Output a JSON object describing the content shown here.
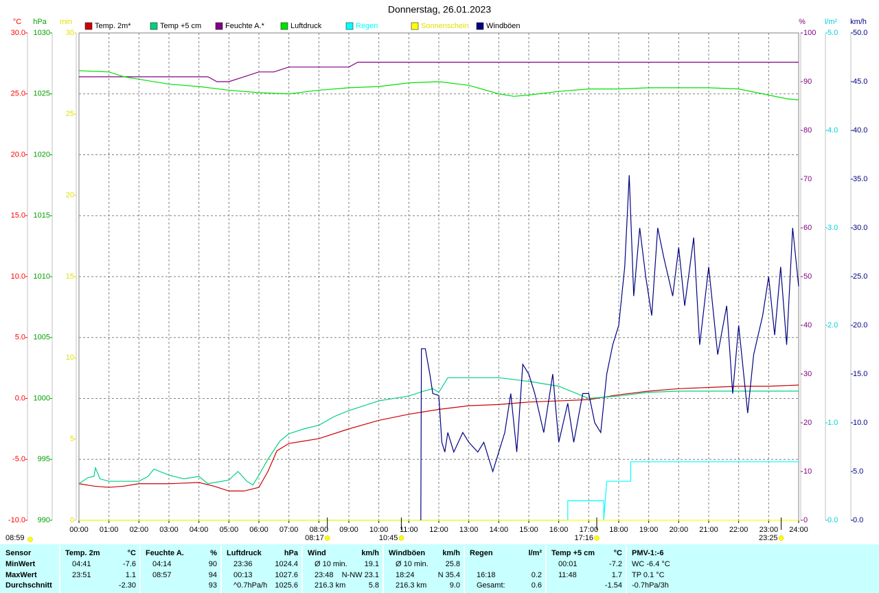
{
  "chart_data": {
    "type": "line",
    "title": "Donnerstag, 26.01.2023",
    "grid": true,
    "xlim": [
      0,
      24
    ],
    "xticks": [
      {
        "value": 0,
        "label": "00:00"
      },
      {
        "value": 1,
        "label": "01:00"
      },
      {
        "value": 2,
        "label": "02:00"
      },
      {
        "value": 3,
        "label": "03:00"
      },
      {
        "value": 4,
        "label": "04:00"
      },
      {
        "value": 5,
        "label": "05:00"
      },
      {
        "value": 6,
        "label": "06:00"
      },
      {
        "value": 7,
        "label": "07:00"
      },
      {
        "value": 8,
        "label": "08:00"
      },
      {
        "value": 9,
        "label": "09:00"
      },
      {
        "value": 10,
        "label": "10:00"
      },
      {
        "value": 11,
        "label": "11:00"
      },
      {
        "value": 12,
        "label": "12:00"
      },
      {
        "value": 13,
        "label": "13:00"
      },
      {
        "value": 14,
        "label": "14:00"
      },
      {
        "value": 15,
        "label": "15:00"
      },
      {
        "value": 16,
        "label": "16:00"
      },
      {
        "value": 17,
        "label": "17:00"
      },
      {
        "value": 18,
        "label": "18:00"
      },
      {
        "value": 19,
        "label": "19:00"
      },
      {
        "value": 20,
        "label": "20:00"
      },
      {
        "value": 21,
        "label": "21:00"
      },
      {
        "value": 22,
        "label": "22:00"
      },
      {
        "value": 23,
        "label": "23:00"
      },
      {
        "value": 24,
        "label": "24:00"
      }
    ],
    "axes": [
      {
        "label": "°C",
        "color": "#ff0000",
        "lim": [
          -10,
          30
        ],
        "ticks": [
          {
            "value": -10,
            "label": "-10.0"
          },
          {
            "value": -5,
            "label": "-5.0"
          },
          {
            "value": 0,
            "label": "0.0"
          },
          {
            "value": 5,
            "label": "5.0"
          },
          {
            "value": 10,
            "label": "10.0"
          },
          {
            "value": 15,
            "label": "15.0"
          },
          {
            "value": 20,
            "label": "20.0"
          },
          {
            "value": 25,
            "label": "25.0"
          },
          {
            "value": 30,
            "label": "30.0"
          }
        ]
      },
      {
        "label": "hPa",
        "color": "#00a000",
        "lim": [
          990,
          1030
        ],
        "ticks": [
          990,
          995,
          1000,
          1005,
          1010,
          1015,
          1020,
          1025,
          1030
        ]
      },
      {
        "label": "min",
        "color": "#e0e000",
        "lim": [
          0,
          30
        ],
        "ticks": [
          0,
          5,
          10,
          15,
          20,
          25,
          30
        ]
      },
      {
        "label": "%",
        "color": "#800080",
        "lim": [
          0,
          100
        ],
        "ticks": [
          0,
          10,
          20,
          30,
          40,
          50,
          60,
          70,
          80,
          90,
          100
        ]
      },
      {
        "label": "l/m²",
        "color": "#00d0d8",
        "lim": [
          0,
          5
        ],
        "ticks": [
          {
            "value": 0,
            "label": "0.0"
          },
          {
            "value": 1,
            "label": "1.0"
          },
          {
            "value": 2,
            "label": "2.0"
          },
          {
            "value": 3,
            "label": "3.0"
          },
          {
            "value": 4,
            "label": "4.0"
          },
          {
            "value": 5,
            "label": "5.0"
          }
        ]
      },
      {
        "label": "km/h",
        "color": "#000080",
        "lim": [
          0,
          50
        ],
        "ticks": [
          {
            "value": 0,
            "label": "0.0"
          },
          {
            "value": 5,
            "label": "5.0"
          },
          {
            "value": 10,
            "label": "10.0"
          },
          {
            "value": 15,
            "label": "15.0"
          },
          {
            "value": 20,
            "label": "20.0"
          },
          {
            "value": 25,
            "label": "25.0"
          },
          {
            "value": 30,
            "label": "30.0"
          },
          {
            "value": 35,
            "label": "35.0"
          },
          {
            "value": 40,
            "label": "40.0"
          },
          {
            "value": 45,
            "label": "45.0"
          },
          {
            "value": 50,
            "label": "50.0"
          }
        ]
      }
    ],
    "series": [
      {
        "name": "Temp. 2m*",
        "color": "#cc0000",
        "axis": 0,
        "x": [
          0,
          0.5,
          1,
          1.5,
          2,
          3,
          4,
          4.5,
          5,
          5.5,
          6,
          6.3,
          6.6,
          7,
          7.5,
          8,
          9,
          10,
          11,
          11.5,
          12,
          13,
          14,
          15,
          16,
          17,
          18,
          19,
          20,
          21,
          22,
          23,
          24
        ],
        "values": [
          -7.0,
          -7.2,
          -7.3,
          -7.2,
          -7.0,
          -7.0,
          -6.9,
          -7.2,
          -7.6,
          -7.6,
          -7.3,
          -6.0,
          -4.3,
          -3.7,
          -3.5,
          -3.3,
          -2.5,
          -1.8,
          -1.3,
          -1.1,
          -0.9,
          -0.6,
          -0.5,
          -0.3,
          -0.2,
          -0.1,
          0.3,
          0.6,
          0.8,
          0.9,
          1.0,
          1.0,
          1.1
        ]
      },
      {
        "name": "Temp +5 cm",
        "color": "#00d080",
        "axis": 0,
        "x": [
          0,
          0.3,
          0.5,
          0.55,
          0.7,
          1,
          2,
          2.3,
          2.5,
          3,
          3.5,
          4,
          4.3,
          5,
          5.3,
          5.6,
          5.8,
          6,
          6.3,
          6.7,
          7,
          7.5,
          8,
          8.5,
          9,
          9.5,
          10,
          11,
          11.5,
          11.8,
          12,
          12.3,
          13,
          14,
          15,
          16,
          17,
          18,
          19,
          20,
          21,
          22,
          23,
          24
        ],
        "values": [
          -7.0,
          -6.5,
          -6.4,
          -5.7,
          -6.6,
          -6.8,
          -6.8,
          -6.4,
          -5.8,
          -6.3,
          -6.6,
          -6.4,
          -7.0,
          -6.7,
          -6.0,
          -6.8,
          -7.1,
          -6.3,
          -5.0,
          -3.5,
          -2.9,
          -2.5,
          -2.2,
          -1.5,
          -1.0,
          -0.6,
          -0.2,
          0.2,
          0.6,
          0.8,
          0.5,
          1.7,
          1.7,
          1.7,
          1.4,
          1.0,
          0.0,
          0.2,
          0.5,
          0.6,
          0.6,
          0.6,
          0.6,
          0.6
        ]
      },
      {
        "name": "Feuchte A.*",
        "color": "#800080",
        "axis": 3,
        "x": [
          0,
          4.3,
          4.6,
          5,
          5.5,
          6,
          6.5,
          7,
          9,
          9.3,
          24
        ],
        "values": [
          91,
          91,
          90,
          90,
          91,
          92,
          92,
          93,
          93,
          94,
          94
        ]
      },
      {
        "name": "Luftdruck",
        "color": "#00e000",
        "axis": 1,
        "x": [
          0,
          1,
          1.5,
          2,
          3,
          4,
          5,
          6,
          7,
          8,
          9,
          10,
          11,
          12,
          13,
          14,
          14.5,
          15,
          16,
          17,
          18,
          19,
          20,
          21,
          22,
          23,
          23.6,
          24
        ],
        "values": [
          1026.9,
          1026.8,
          1026.4,
          1026.2,
          1025.8,
          1025.6,
          1025.3,
          1025.1,
          1025.0,
          1025.3,
          1025.5,
          1025.6,
          1025.9,
          1026.0,
          1025.7,
          1025.0,
          1024.8,
          1024.9,
          1025.2,
          1025.4,
          1025.4,
          1025.5,
          1025.5,
          1025.5,
          1025.4,
          1024.9,
          1024.6,
          1024.5
        ]
      },
      {
        "name": "Regen",
        "color": "#00ffff",
        "legend_text_color": "#00ffff",
        "axis": 4,
        "x": [
          0,
          16.3,
          16.3,
          17.5,
          17.5,
          17.6,
          18.4,
          18.4,
          24
        ],
        "values": [
          0,
          0,
          0.2,
          0.2,
          0,
          0.4,
          0.4,
          0.6,
          0.6
        ]
      },
      {
        "name": "Sonnenschein",
        "color": "#ffff00",
        "legend_text_color": "#e0e000",
        "axis": 2,
        "x": [
          0,
          24
        ],
        "values": [
          0,
          0
        ]
      },
      {
        "name": "Windböen",
        "color": "#000080",
        "axis": 5,
        "x": [
          11.4,
          11.42,
          11.55,
          11.7,
          11.8,
          12,
          12.1,
          12.2,
          12.3,
          12.5,
          12.8,
          13,
          13.3,
          13.5,
          13.8,
          14,
          14.2,
          14.4,
          14.6,
          14.8,
          15,
          15.2,
          15.5,
          15.8,
          16,
          16.3,
          16.5,
          16.8,
          17,
          17.2,
          17.4,
          17.6,
          17.8,
          18,
          18.2,
          18.35,
          18.5,
          18.7,
          18.9,
          19.1,
          19.3,
          19.5,
          19.8,
          20,
          20.2,
          20.5,
          20.7,
          21,
          21.3,
          21.6,
          21.8,
          22,
          22.3,
          22.5,
          22.8,
          23,
          23.2,
          23.4,
          23.6,
          23.8,
          24
        ],
        "values": [
          0,
          17.6,
          17.6,
          15,
          13,
          12.8,
          8,
          7,
          9,
          7,
          9,
          8,
          7,
          8,
          5,
          7,
          9,
          13,
          7,
          16,
          15,
          13,
          9,
          15,
          8,
          12,
          8,
          13,
          13,
          10,
          9,
          15,
          18,
          20,
          26,
          35.4,
          23,
          30,
          25,
          21,
          30,
          27,
          23,
          28,
          22,
          29,
          18,
          26,
          17,
          22,
          13,
          20,
          11,
          17,
          21,
          25,
          19,
          26,
          18,
          30,
          24
        ]
      }
    ],
    "sunshine_duration": "08:59",
    "annotations": [
      {
        "x": 8.283,
        "text": "08:17"
      },
      {
        "x": 10.75,
        "text": "10:45"
      },
      {
        "x": 17.267,
        "text": "17:16"
      },
      {
        "x": 23.417,
        "text": "23:25"
      }
    ],
    "summary": {
      "columns": [
        {
          "name": "Sensor"
        },
        {
          "name": "Temp. 2m",
          "unit": "°C"
        },
        {
          "name": "Feuchte A.",
          "unit": "%"
        },
        {
          "name": "Luftdruck",
          "unit": "hPa"
        },
        {
          "name": "Wind",
          "unit": "km/h"
        },
        {
          "name": "Windböen",
          "unit": "km/h"
        },
        {
          "name": "Regen",
          "unit": "l/m²"
        },
        {
          "name": "Temp +5 cm",
          "unit": "°C"
        },
        {
          "name": "PMV-1:-6"
        }
      ],
      "rows": [
        {
          "label": "MinWert",
          "cells": [
            [
              "04:41",
              "-7.6"
            ],
            [
              "04:14",
              "90"
            ],
            [
              "23:36",
              "1024.4"
            ],
            [
              "Ø 10 min.",
              "19.1"
            ],
            [
              "Ø 10 min.",
              "25.8"
            ],
            [
              null,
              null
            ],
            [
              "00:01",
              "-7.2"
            ],
            [
              "WC -6.4 °C"
            ]
          ]
        },
        {
          "label": "MaxWert",
          "cells": [
            [
              "23:51",
              "1.1"
            ],
            [
              "08:57",
              "94"
            ],
            [
              "00:13",
              "1027.6"
            ],
            [
              "23:48",
              "N-NW 23.1"
            ],
            [
              "18:24",
              "N 35.4"
            ],
            [
              "16:18",
              "0.2"
            ],
            [
              "11:48",
              "1.7"
            ],
            [
              "TP 0.1 °C"
            ]
          ]
        },
        {
          "label": "Durchschnitt",
          "cells": [
            [
              null,
              "-2.30"
            ],
            [
              null,
              "93"
            ],
            [
              "^0.7hPa/h",
              "1025.6"
            ],
            [
              "216.3 km",
              "5.8"
            ],
            [
              "216.3 km",
              "9.0"
            ],
            [
              "Gesamt:",
              "0.6"
            ],
            [
              null,
              "-1.54"
            ],
            [
              "-0.7hPa/3h"
            ]
          ]
        }
      ]
    }
  }
}
